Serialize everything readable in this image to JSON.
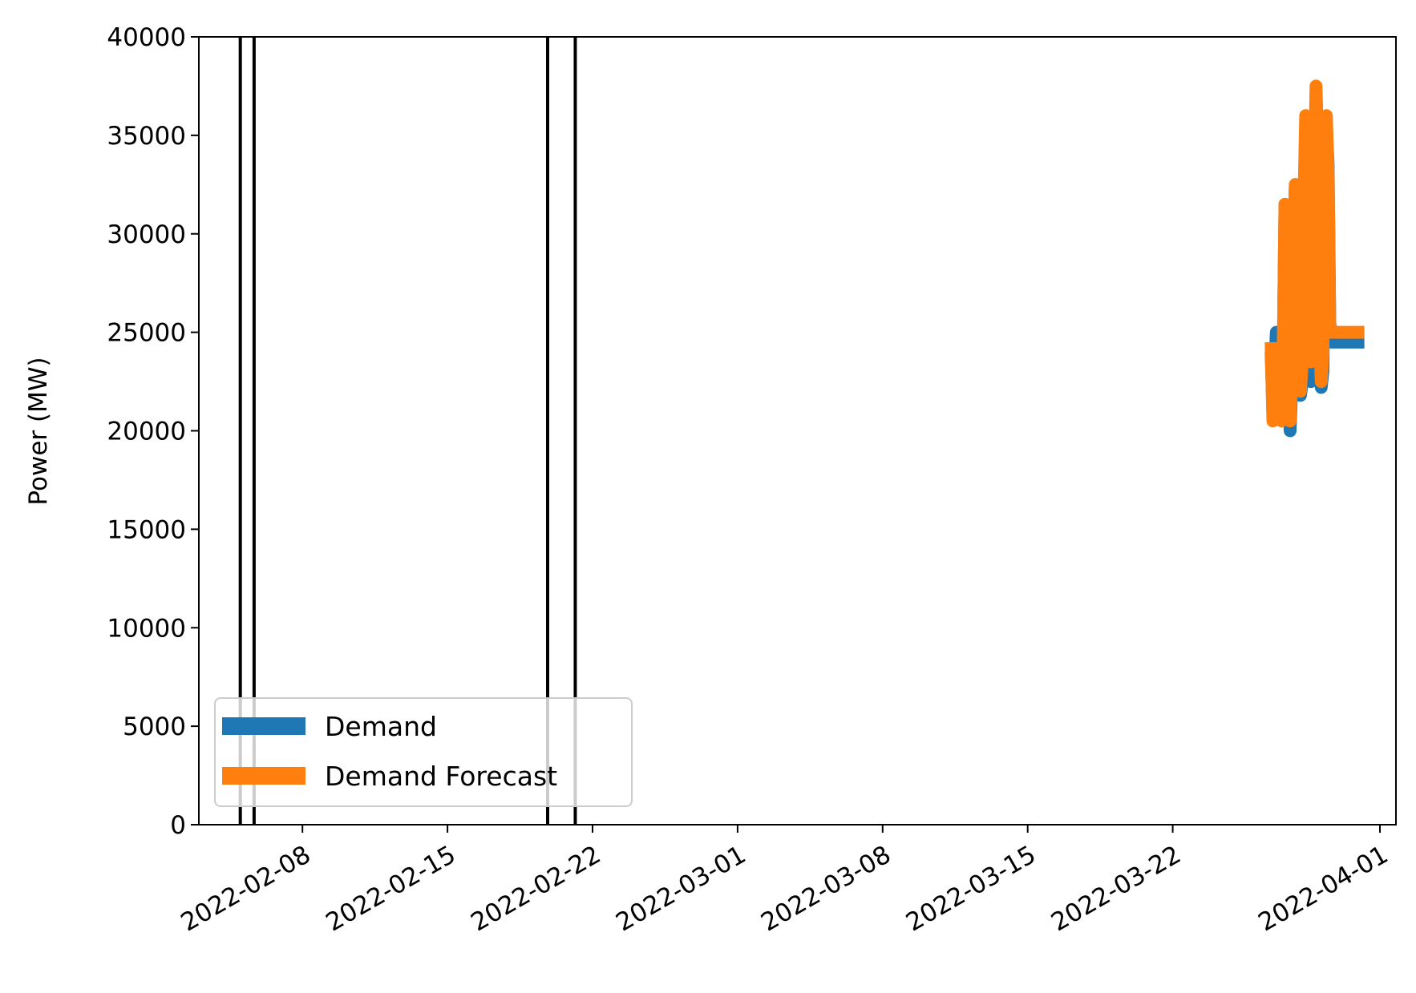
{
  "chart_data": {
    "type": "line",
    "title": "",
    "xlabel": "",
    "ylabel": "Power (MW)",
    "ylim": [
      0,
      40000
    ],
    "xlim": [
      "2022-02-03",
      "2022-04-01"
    ],
    "x_ticks": [
      "2022-02-08",
      "2022-02-15",
      "2022-02-22",
      "2022-03-01",
      "2022-03-08",
      "2022-03-15",
      "2022-03-22",
      "2022-04-01"
    ],
    "y_ticks": [
      0,
      5000,
      10000,
      15000,
      20000,
      25000,
      30000,
      35000,
      40000
    ],
    "grid": false,
    "legend_position": "lower-left",
    "vertical_lines": [
      "2022-02-05",
      "2022-02-05 16:00",
      "2022-02-19 20:00",
      "2022-02-21 04:00"
    ],
    "series": [
      {
        "name": "Demand",
        "color": "#1f77b4",
        "x": [
          "2022-03-26 18:00",
          "2022-03-26 20:00",
          "2022-03-26 22:00",
          "2022-03-27 00:00",
          "2022-03-27 02:00",
          "2022-03-27 04:00",
          "2022-03-27 06:00",
          "2022-03-27 08:00",
          "2022-03-27 10:00",
          "2022-03-27 12:00",
          "2022-03-27 14:00",
          "2022-03-27 16:00",
          "2022-03-27 18:00",
          "2022-03-27 20:00",
          "2022-03-27 22:00",
          "2022-03-28 00:00",
          "2022-03-28 02:00",
          "2022-03-28 04:00",
          "2022-03-28 06:00",
          "2022-03-28 08:00",
          "2022-03-28 10:00",
          "2022-03-28 12:00",
          "2022-03-28 14:00",
          "2022-03-28 16:00",
          "2022-03-28 18:00",
          "2022-03-28 20:00",
          "2022-03-28 22:00",
          "2022-03-29 00:00",
          "2022-03-29 02:00",
          "2022-03-29 04:00",
          "2022-03-29 06:00",
          "2022-03-29 08:00",
          "2022-03-29 10:00",
          "2022-03-29 12:00",
          "2022-03-29 14:00",
          "2022-03-29 16:00",
          "2022-03-29 18:00",
          "2022-03-29 20:00",
          "2022-03-29 22:00",
          "2022-03-30 00:00",
          "2022-03-30 02:00",
          "2022-03-30 04:00",
          "2022-03-30 06:00",
          "2022-03-30 08:00",
          "2022-03-30 10:00",
          "2022-03-30 12:00",
          "2022-03-30 14:00",
          "2022-03-30 16:00",
          "2022-03-30 18:00",
          "2022-03-30 20:00",
          "2022-03-30 22:00",
          "2022-03-31 00:00",
          "2022-03-31 02:00",
          "2022-03-31 04:00",
          "2022-03-31 06:00"
        ],
        "values": [
          24000,
          21000,
          23000,
          25000,
          24500,
          22000,
          20800,
          23500,
          31500,
          27500,
          21800,
          20000,
          22500,
          29000,
          32500,
          27500,
          23000,
          21800,
          22500,
          30000,
          35500,
          33000,
          24000,
          22500,
          24500,
          31000,
          37000,
          34500,
          26000,
          22200,
          23000,
          30000,
          35500,
          33500,
          25500,
          24500,
          24500,
          24500,
          24500,
          24500,
          24500,
          24500,
          24500,
          24500,
          24500,
          24500,
          24500,
          24500,
          24500,
          24500,
          24500,
          24500,
          24500,
          24500,
          24500
        ]
      },
      {
        "name": "Demand Forecast",
        "color": "#ff7f0e",
        "x": [
          "2022-03-26 18:00",
          "2022-03-26 20:00",
          "2022-03-26 22:00",
          "2022-03-27 00:00",
          "2022-03-27 02:00",
          "2022-03-27 04:00",
          "2022-03-27 06:00",
          "2022-03-27 08:00",
          "2022-03-27 10:00",
          "2022-03-27 12:00",
          "2022-03-27 14:00",
          "2022-03-27 16:00",
          "2022-03-27 18:00",
          "2022-03-27 20:00",
          "2022-03-27 22:00",
          "2022-03-28 00:00",
          "2022-03-28 02:00",
          "2022-03-28 04:00",
          "2022-03-28 06:00",
          "2022-03-28 08:00",
          "2022-03-28 10:00",
          "2022-03-28 12:00",
          "2022-03-28 14:00",
          "2022-03-28 16:00",
          "2022-03-28 18:00",
          "2022-03-28 20:00",
          "2022-03-28 22:00",
          "2022-03-29 00:00",
          "2022-03-29 02:00",
          "2022-03-29 04:00",
          "2022-03-29 06:00",
          "2022-03-29 08:00",
          "2022-03-29 10:00",
          "2022-03-29 12:00",
          "2022-03-29 14:00",
          "2022-03-29 16:00",
          "2022-03-29 18:00",
          "2022-03-29 20:00",
          "2022-03-29 22:00",
          "2022-03-30 00:00",
          "2022-03-30 02:00",
          "2022-03-30 04:00",
          "2022-03-30 06:00",
          "2022-03-30 08:00",
          "2022-03-30 10:00",
          "2022-03-30 12:00",
          "2022-03-30 14:00",
          "2022-03-30 16:00",
          "2022-03-30 18:00",
          "2022-03-30 20:00",
          "2022-03-30 22:00",
          "2022-03-31 00:00",
          "2022-03-31 02:00",
          "2022-03-31 04:00",
          "2022-03-31 06:00"
        ],
        "values": [
          24500,
          20500,
          22500,
          24000,
          23500,
          21500,
          20500,
          24000,
          31500,
          27000,
          21500,
          20500,
          23000,
          30000,
          32500,
          27000,
          22500,
          22000,
          23500,
          31500,
          36000,
          33500,
          25500,
          23500,
          25500,
          33000,
          37500,
          34000,
          25000,
          22500,
          24000,
          31000,
          36000,
          33000,
          25000,
          25000,
          25000,
          25000,
          25000,
          25000,
          25000,
          25000,
          25000,
          25000,
          25000,
          25000,
          25000,
          25000,
          25000,
          25000,
          25000,
          25000,
          25000,
          25000,
          25000
        ]
      }
    ]
  }
}
